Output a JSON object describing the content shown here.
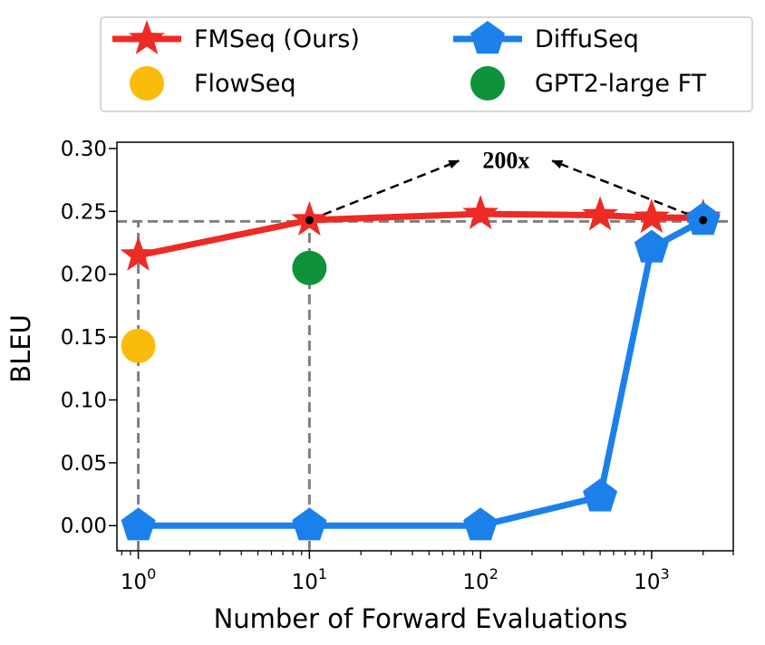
{
  "chart_data": {
    "type": "line",
    "xlabel": "Number of Forward Evaluations",
    "ylabel": "BLEU",
    "xscale": "log",
    "xlim": [
      0.75,
      3000
    ],
    "ylim": [
      -0.02,
      0.305
    ],
    "xticks": [
      {
        "value": 1,
        "label": "10",
        "exp": "0"
      },
      {
        "value": 10,
        "label": "10",
        "exp": "1"
      },
      {
        "value": 100,
        "label": "10",
        "exp": "2"
      },
      {
        "value": 1000,
        "label": "10",
        "exp": "3"
      }
    ],
    "yticks": [
      {
        "value": 0.0,
        "label": "0.00"
      },
      {
        "value": 0.05,
        "label": "0.05"
      },
      {
        "value": 0.1,
        "label": "0.10"
      },
      {
        "value": 0.15,
        "label": "0.15"
      },
      {
        "value": 0.2,
        "label": "0.20"
      },
      {
        "value": 0.25,
        "label": "0.25"
      },
      {
        "value": 0.3,
        "label": "0.30"
      }
    ],
    "series": [
      {
        "name": "FMSeq (Ours)",
        "color": "#ee2a24",
        "marker": "star",
        "line": true,
        "x": [
          1,
          10,
          100,
          500,
          1000,
          2000
        ],
        "y": [
          0.215,
          0.243,
          0.248,
          0.247,
          0.245,
          0.245
        ]
      },
      {
        "name": "DiffuSeq",
        "color": "#1b80ea",
        "marker": "pentagon",
        "line": true,
        "x": [
          1,
          10,
          100,
          500,
          1000,
          2000
        ],
        "y": [
          0.0,
          0.0,
          0.0,
          0.023,
          0.221,
          0.243
        ]
      },
      {
        "name": "FlowSeq",
        "color": "#fbbb0c",
        "marker": "circle",
        "line": false,
        "x": [
          1
        ],
        "y": [
          0.143
        ]
      },
      {
        "name": "GPT2-large FT",
        "color": "#0e933b",
        "marker": "circle",
        "line": false,
        "x": [
          10
        ],
        "y": [
          0.205
        ]
      }
    ],
    "reference_lines": {
      "horizontal_y": 0.242,
      "vertical_x": [
        1,
        10
      ],
      "color": "#808080",
      "style": "dashed"
    },
    "annotation": {
      "text": "200x",
      "arrow_from": [
        {
          "x": 10,
          "y": 0.243
        },
        {
          "x": 2000,
          "y": 0.243
        }
      ],
      "text_at": {
        "x": 141,
        "y": 0.291
      }
    },
    "legend": {
      "placement": "top, outside plot, two columns",
      "order": [
        "FMSeq (Ours)",
        "DiffuSeq",
        "FlowSeq",
        "GPT2-large FT"
      ]
    },
    "grid": false
  }
}
